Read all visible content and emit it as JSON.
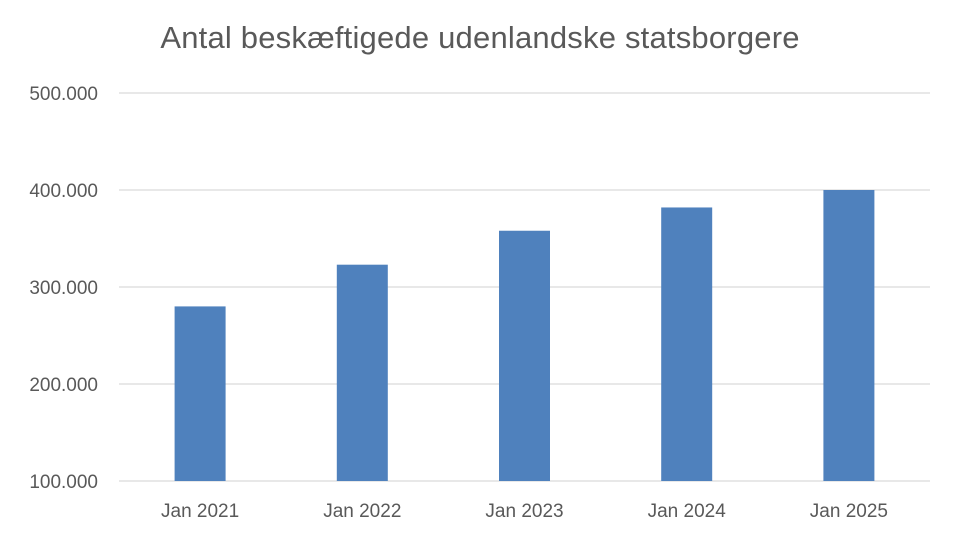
{
  "chart_data": {
    "type": "bar",
    "title": "Antal beskæftigede udenlandske statsborgere",
    "xlabel": "",
    "ylabel": "",
    "categories": [
      "Jan 2021",
      "Jan 2022",
      "Jan 2023",
      "Jan 2024",
      "Jan 2025"
    ],
    "values": [
      280000,
      323000,
      358000,
      382000,
      400000
    ],
    "ylim": [
      100000,
      500000
    ],
    "yticks": [
      100000,
      200000,
      300000,
      400000,
      500000
    ],
    "ytick_labels": [
      "100.000",
      "200.000",
      "300.000",
      "400.000",
      "500.000"
    ],
    "grid": true,
    "legend": "none",
    "colors": {
      "bar": "#4f81bd",
      "grid": "#d9d9d9",
      "text": "#595959"
    }
  }
}
